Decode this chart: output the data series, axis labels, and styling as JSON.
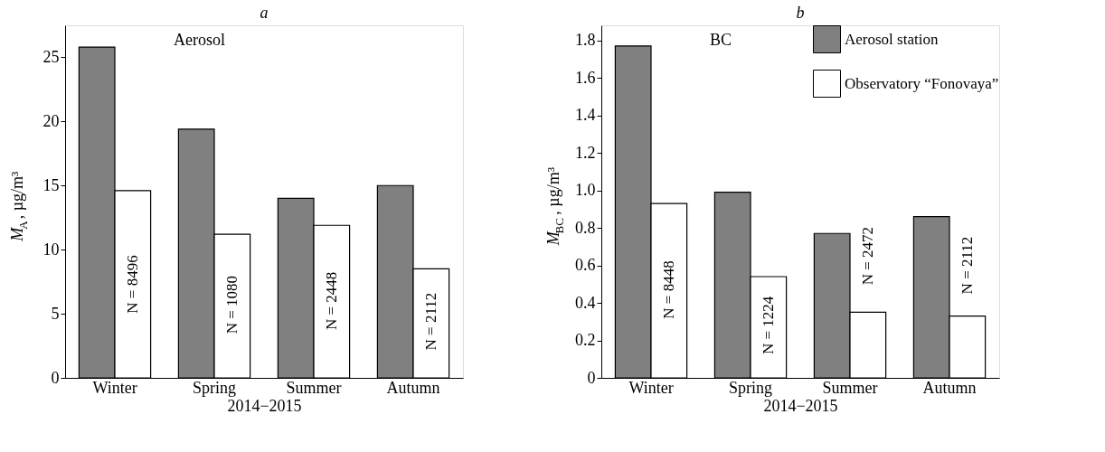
{
  "chart_data": [
    {
      "type": "bar",
      "title": "a",
      "ylabel": "M$_{A}$, µg/m³",
      "xlabel": "2014−2015",
      "categories": [
        "Winter",
        "Spring",
        "Summer",
        "Autumn"
      ],
      "series": [
        {
          "color": "#808080",
          "values": [
            25.8,
            19.4,
            14.0,
            15.0
          ]
        },
        {
          "color": "#ffffff",
          "values": [
            14.6,
            11.2,
            11.9,
            8.5
          ]
        }
      ],
      "ylim": [
        0,
        27.5
      ],
      "yticks": [
        0,
        5,
        10,
        15,
        20,
        25
      ],
      "grid": false,
      "legend": false,
      "annotations": [
        "Aerosol",
        {
          "text": "N = 8496",
          "x": "Winter",
          "y": 7.3
        },
        {
          "text": "N = 1080",
          "x": "Spring",
          "y": 5.7
        },
        {
          "text": "N = 2448",
          "x": "Summer",
          "y": 6.0
        },
        {
          "text": "N = 2112",
          "x": "Autumn",
          "y": 4.4
        }
      ]
    },
    {
      "type": "bar",
      "title": "b",
      "ylabel": "M$_{BC}$, µg/m³",
      "xlabel": "2014−2015",
      "categories": [
        "Winter",
        "Spring",
        "Summer",
        "Autumn"
      ],
      "series": [
        {
          "name": "Aerosol station",
          "color": "#808080",
          "values": [
            1.77,
            0.99,
            0.77,
            0.86
          ]
        },
        {
          "name": "Observatory “Fonovaya”",
          "color": "#ffffff",
          "values": [
            0.93,
            0.54,
            0.35,
            0.33
          ]
        }
      ],
      "ylim": [
        0,
        1.88
      ],
      "yticks": [
        {
          "value": 0,
          "label": "0"
        },
        0.2,
        0.4,
        0.6,
        0.8,
        {
          "value": 1,
          "label": "1.0"
        },
        1.2,
        1.4,
        1.6,
        1.8
      ],
      "grid": false,
      "legend": "top right",
      "annotations": [
        "BC",
        {
          "text": "N = 8448",
          "x": "Winter",
          "y": 0.47
        },
        {
          "text": "N = 1224",
          "x": "Spring",
          "y": 0.28
        },
        {
          "text": "N = 2472",
          "x": "Summer",
          "y": 0.65
        },
        {
          "text": "N = 2112",
          "x": "Autumn",
          "y": 0.6
        }
      ]
    }
  ]
}
